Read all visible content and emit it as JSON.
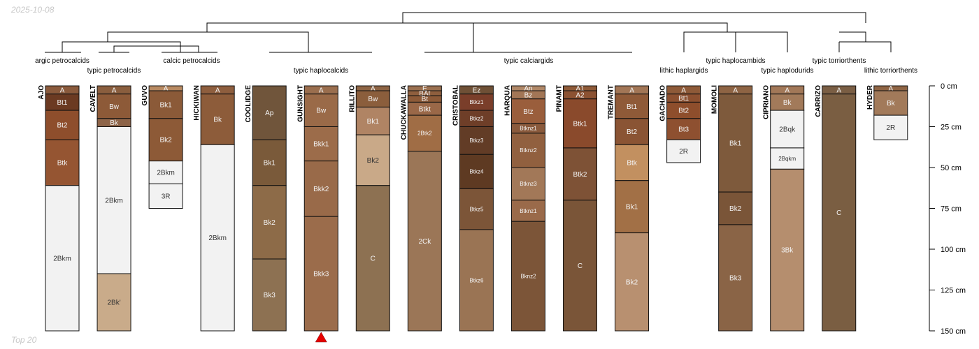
{
  "date_label": "2025-10-08",
  "footer_label": "Top 20",
  "depth_axis": {
    "max_cm": 150,
    "unit": "cm",
    "ticks": [
      {
        "value": 0,
        "label": "0 cm"
      },
      {
        "value": 25,
        "label": "25 cm"
      },
      {
        "value": 50,
        "label": "50 cm"
      },
      {
        "value": 75,
        "label": "75 cm"
      },
      {
        "value": 100,
        "label": "100 cm"
      },
      {
        "value": 125,
        "label": "125 cm"
      },
      {
        "value": 150,
        "label": "150 cm"
      }
    ]
  },
  "taxa": [
    {
      "label": "argic petrocalcids"
    },
    {
      "label": "typic petrocalcids"
    },
    {
      "label": "calcic petrocalcids"
    },
    {
      "label": "typic haplocalcids"
    },
    {
      "label": "typic calciargids"
    },
    {
      "label": "lithic haplargids"
    },
    {
      "label": "typic haplocambids"
    },
    {
      "label": "typic haplodurids"
    },
    {
      "label": "typic torriorthents"
    },
    {
      "label": "lithic torriorthents"
    }
  ],
  "highlight_marker": {
    "profile": "GUNSIGHT",
    "color": "#e60000"
  },
  "profiles": [
    {
      "name": "AJO",
      "horizons": [
        {
          "name": "A",
          "top": 0,
          "bottom": 5,
          "color": "#8a5a3c"
        },
        {
          "name": "Bt1",
          "top": 5,
          "bottom": 15,
          "color": "#6b3a22"
        },
        {
          "name": "Bt2",
          "top": 15,
          "bottom": 33,
          "color": "#8e4e2c"
        },
        {
          "name": "Btk",
          "top": 33,
          "bottom": 61,
          "color": "#955532"
        },
        {
          "name": "2Bkm",
          "top": 61,
          "bottom": 150,
          "color": "#f2f2f2"
        }
      ]
    },
    {
      "name": "CAVELT",
      "horizons": [
        {
          "name": "A",
          "top": 0,
          "bottom": 5,
          "color": "#8a5e3e"
        },
        {
          "name": "Bw",
          "top": 5,
          "bottom": 20,
          "color": "#8d5a38"
        },
        {
          "name": "Bk",
          "top": 20,
          "bottom": 25,
          "color": "#8e6448"
        },
        {
          "name": "2Bkm",
          "top": 25,
          "bottom": 115,
          "color": "#f2f2f2"
        },
        {
          "name": "2Bk'",
          "top": 115,
          "bottom": 150,
          "color": "#c9ab8a"
        }
      ]
    },
    {
      "name": "GUVO",
      "horizons": [
        {
          "name": "A",
          "top": 0,
          "bottom": 3,
          "color": "#b88a62"
        },
        {
          "name": "Bk1",
          "top": 3,
          "bottom": 20,
          "color": "#8b5a38"
        },
        {
          "name": "Bk2",
          "top": 20,
          "bottom": 46,
          "color": "#8d5a37"
        },
        {
          "name": "2Bkm",
          "top": 46,
          "bottom": 60,
          "color": "#f2f2f2"
        },
        {
          "name": "3R",
          "top": 60,
          "bottom": 75,
          "color": "#f2f2f2"
        }
      ]
    },
    {
      "name": "HICKIWAN",
      "horizons": [
        {
          "name": "A",
          "top": 0,
          "bottom": 5,
          "color": "#8e5e3e"
        },
        {
          "name": "Bk",
          "top": 5,
          "bottom": 36,
          "color": "#8d5c3a"
        },
        {
          "name": "2Bkm",
          "top": 36,
          "bottom": 150,
          "color": "#f2f2f2"
        }
      ]
    },
    {
      "name": "COOLIDGE",
      "horizons": [
        {
          "name": "Ap",
          "top": 0,
          "bottom": 33,
          "color": "#70553b"
        },
        {
          "name": "Bk1",
          "top": 33,
          "bottom": 61,
          "color": "#7a5a3a"
        },
        {
          "name": "Bk2",
          "top": 61,
          "bottom": 106,
          "color": "#8d6b48"
        },
        {
          "name": "Bk3",
          "top": 106,
          "bottom": 150,
          "color": "#8d7152"
        }
      ]
    },
    {
      "name": "GUNSIGHT",
      "horizons": [
        {
          "name": "A",
          "top": 0,
          "bottom": 5,
          "color": "#9a6e4e"
        },
        {
          "name": "Bw",
          "top": 5,
          "bottom": 25,
          "color": "#9a6a48"
        },
        {
          "name": "Bkk1",
          "top": 25,
          "bottom": 46,
          "color": "#9c6c4a"
        },
        {
          "name": "Bkk2",
          "top": 46,
          "bottom": 80,
          "color": "#996a49"
        },
        {
          "name": "Bkk3",
          "top": 80,
          "bottom": 150,
          "color": "#9b6c4b"
        }
      ]
    },
    {
      "name": "RILLITO",
      "horizons": [
        {
          "name": "A",
          "top": 0,
          "bottom": 3,
          "color": "#8d6444"
        },
        {
          "name": "Bw",
          "top": 3,
          "bottom": 13,
          "color": "#8b5e3c"
        },
        {
          "name": "Bk1",
          "top": 13,
          "bottom": 30,
          "color": "#b08464"
        },
        {
          "name": "Bk2",
          "top": 30,
          "bottom": 61,
          "color": "#c9a988"
        },
        {
          "name": "C",
          "top": 61,
          "bottom": 150,
          "color": "#8d7152"
        }
      ]
    },
    {
      "name": "CHUCKAWALLA",
      "horizons": [
        {
          "name": "E",
          "top": 0,
          "bottom": 3,
          "color": "#9a7050"
        },
        {
          "name": "BAt",
          "top": 3,
          "bottom": 6,
          "color": "#8f5f3e"
        },
        {
          "name": "Bt",
          "top": 6,
          "bottom": 10,
          "color": "#8d5a38"
        },
        {
          "name": "Btkt",
          "top": 10,
          "bottom": 18,
          "color": "#9a6848"
        },
        {
          "name": "2Btk2",
          "top": 18,
          "bottom": 40,
          "color": "#a06d45"
        },
        {
          "name": "2Ck",
          "top": 40,
          "bottom": 150,
          "color": "#9b7657"
        }
      ]
    },
    {
      "name": "CRISTOBAL",
      "horizons": [
        {
          "name": "Ez",
          "top": 0,
          "bottom": 5,
          "color": "#6f5036"
        },
        {
          "name": "Btkz1",
          "top": 5,
          "bottom": 15,
          "color": "#7a3e2a"
        },
        {
          "name": "Btkz2",
          "top": 15,
          "bottom": 25,
          "color": "#6e3e28"
        },
        {
          "name": "Btkz3",
          "top": 25,
          "bottom": 42,
          "color": "#623c26"
        },
        {
          "name": "Btkz4",
          "top": 42,
          "bottom": 63,
          "color": "#5e3a22"
        },
        {
          "name": "Btkz5",
          "top": 63,
          "bottom": 88,
          "color": "#7c5538"
        },
        {
          "name": "Btkz6",
          "top": 88,
          "bottom": 150,
          "color": "#9a7454"
        }
      ]
    },
    {
      "name": "HARQUA",
      "horizons": [
        {
          "name": "An",
          "top": 0,
          "bottom": 3,
          "color": "#b08868"
        },
        {
          "name": "Bz",
          "top": 3,
          "bottom": 8,
          "color": "#a27656"
        },
        {
          "name": "Btz",
          "top": 8,
          "bottom": 23,
          "color": "#9a5e3c"
        },
        {
          "name": "Btknz1",
          "top": 23,
          "bottom": 29,
          "color": "#8a5a3c"
        },
        {
          "name": "Btknz2",
          "top": 29,
          "bottom": 50,
          "color": "#91603f"
        },
        {
          "name": "Btknz3",
          "top": 50,
          "bottom": 70,
          "color": "#a27858"
        },
        {
          "name": "Btknz1",
          "top": 70,
          "bottom": 83,
          "color": "#9a6a4a"
        },
        {
          "name": "Bknz2",
          "top": 83,
          "bottom": 150,
          "color": "#7c5538"
        }
      ]
    },
    {
      "name": "PINAMT",
      "horizons": [
        {
          "name": "A1",
          "top": 0,
          "bottom": 3,
          "color": "#8e5a38"
        },
        {
          "name": "A2",
          "top": 3,
          "bottom": 8,
          "color": "#8c5232"
        },
        {
          "name": "Btk1",
          "top": 8,
          "bottom": 38,
          "color": "#8a4a2c"
        },
        {
          "name": "Btk2",
          "top": 38,
          "bottom": 70,
          "color": "#7e5236"
        },
        {
          "name": "C",
          "top": 70,
          "bottom": 150,
          "color": "#7a5538"
        }
      ]
    },
    {
      "name": "TREMANT",
      "horizons": [
        {
          "name": "A",
          "top": 0,
          "bottom": 5,
          "color": "#a27656"
        },
        {
          "name": "Bt1",
          "top": 5,
          "bottom": 20,
          "color": "#8f5a38"
        },
        {
          "name": "Bt2",
          "top": 20,
          "bottom": 36,
          "color": "#8a5434"
        },
        {
          "name": "Btk",
          "top": 36,
          "bottom": 58,
          "color": "#c29060"
        },
        {
          "name": "Bk1",
          "top": 58,
          "bottom": 90,
          "color": "#a27046"
        },
        {
          "name": "Bk2",
          "top": 90,
          "bottom": 150,
          "color": "#b89070"
        }
      ]
    },
    {
      "name": "GACHADO",
      "horizons": [
        {
          "name": "A",
          "top": 0,
          "bottom": 5,
          "color": "#8e5a38"
        },
        {
          "name": "Bt1",
          "top": 5,
          "bottom": 10,
          "color": "#8c5030"
        },
        {
          "name": "Bt2",
          "top": 10,
          "bottom": 20,
          "color": "#8e4e2c"
        },
        {
          "name": "Bt3",
          "top": 20,
          "bottom": 33,
          "color": "#8e5030"
        },
        {
          "name": "2R",
          "top": 33,
          "bottom": 47,
          "color": "#f2f2f2"
        }
      ]
    },
    {
      "name": "MOMOLI",
      "horizons": [
        {
          "name": "A",
          "top": 0,
          "bottom": 5,
          "color": "#8e6444"
        },
        {
          "name": "Bk1",
          "top": 5,
          "bottom": 65,
          "color": "#7e5a3c"
        },
        {
          "name": "Bk2",
          "top": 65,
          "bottom": 85,
          "color": "#7a5538"
        },
        {
          "name": "Bk3",
          "top": 85,
          "bottom": 150,
          "color": "#8a6446"
        }
      ]
    },
    {
      "name": "CIPRIANO",
      "horizons": [
        {
          "name": "A",
          "top": 0,
          "bottom": 5,
          "color": "#a27858"
        },
        {
          "name": "Bk",
          "top": 5,
          "bottom": 15,
          "color": "#a27a5a"
        },
        {
          "name": "2Bqk",
          "top": 15,
          "bottom": 38,
          "color": "#f2f2f2"
        },
        {
          "name": "2Bqkm",
          "top": 38,
          "bottom": 51,
          "color": "#f2f2f2"
        },
        {
          "name": "3Bk",
          "top": 51,
          "bottom": 150,
          "color": "#b58e6e"
        }
      ]
    },
    {
      "name": "CARRIZO",
      "horizons": [
        {
          "name": "A",
          "top": 0,
          "bottom": 5,
          "color": "#7a5e44"
        },
        {
          "name": "C",
          "top": 5,
          "bottom": 150,
          "color": "#7a5e42"
        }
      ]
    },
    {
      "name": "HYDER",
      "horizons": [
        {
          "name": "A",
          "top": 0,
          "bottom": 3,
          "color": "#8e6444"
        },
        {
          "name": "Bk",
          "top": 3,
          "bottom": 18,
          "color": "#a27a5a"
        },
        {
          "name": "2R",
          "top": 18,
          "bottom": 33,
          "color": "#f2f2f2"
        }
      ]
    }
  ]
}
